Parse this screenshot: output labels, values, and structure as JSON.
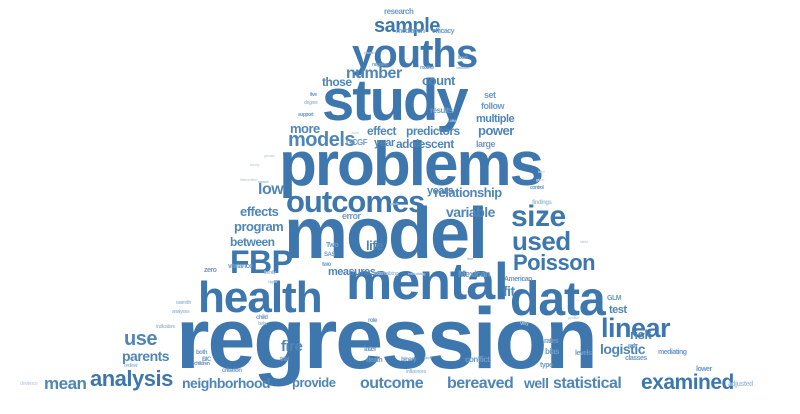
{
  "words": [
    {
      "id": "regression",
      "text": "regression"
    },
    {
      "id": "model",
      "text": "model"
    },
    {
      "id": "problems",
      "text": "problems"
    },
    {
      "id": "study",
      "text": "study"
    },
    {
      "id": "mental",
      "text": "mental"
    },
    {
      "id": "health",
      "text": "health"
    },
    {
      "id": "data",
      "text": "data"
    },
    {
      "id": "youths",
      "text": "youths"
    },
    {
      "id": "outcomes",
      "text": "outcomes"
    },
    {
      "id": "FBP",
      "text": "FBP"
    },
    {
      "id": "size",
      "text": "size"
    },
    {
      "id": "used",
      "text": "used"
    },
    {
      "id": "linear",
      "text": "linear"
    },
    {
      "id": "Poisson",
      "text": "Poisson"
    },
    {
      "id": "analysis",
      "text": "analysis"
    },
    {
      "id": "examined",
      "text": "examined"
    },
    {
      "id": "sample",
      "text": "sample"
    },
    {
      "id": "models",
      "text": "models"
    },
    {
      "id": "use",
      "text": "use"
    },
    {
      "id": "mean",
      "text": "mean"
    },
    {
      "id": "outcome",
      "text": "outcome"
    },
    {
      "id": "bereaved",
      "text": "bereaved"
    },
    {
      "id": "statistical",
      "text": "statistical"
    },
    {
      "id": "neighborhood",
      "text": "neighborhood"
    },
    {
      "id": "logistic",
      "text": "logistic"
    },
    {
      "id": "number",
      "text": "number"
    },
    {
      "id": "count",
      "text": "count"
    },
    {
      "id": "relationship",
      "text": "relationship"
    },
    {
      "id": "parents",
      "text": "parents"
    },
    {
      "id": "variable",
      "text": "variable"
    },
    {
      "id": "low",
      "text": "low"
    },
    {
      "id": "effects",
      "text": "effects"
    },
    {
      "id": "program",
      "text": "program"
    },
    {
      "id": "between",
      "text": "between"
    },
    {
      "id": "provide",
      "text": "provide"
    },
    {
      "id": "well",
      "text": "well"
    },
    {
      "id": "risk",
      "text": "risk"
    },
    {
      "id": "fit",
      "text": "fit"
    },
    {
      "id": "test",
      "text": "test"
    },
    {
      "id": "power",
      "text": "power"
    },
    {
      "id": "adolescent",
      "text": "adolescent"
    },
    {
      "id": "predictors",
      "text": "predictors"
    },
    {
      "id": "more",
      "text": "more"
    },
    {
      "id": "those",
      "text": "those"
    },
    {
      "id": "years",
      "text": "years"
    },
    {
      "id": "effect",
      "text": "effect"
    },
    {
      "id": "measures",
      "text": "measures"
    },
    {
      "id": "multiple",
      "text": "multiple"
    },
    {
      "id": "year",
      "text": "year"
    },
    {
      "id": "fire",
      "text": "fire"
    },
    {
      "id": "life",
      "text": "life"
    },
    {
      "id": "error",
      "text": "error"
    },
    {
      "id": "research",
      "text": "research"
    },
    {
      "id": "mediation",
      "text": "mediation"
    },
    {
      "id": "efficacy",
      "text": "efficacy"
    },
    {
      "id": "GCGF",
      "text": "GCGF"
    },
    {
      "id": "large",
      "text": "large"
    },
    {
      "id": "set",
      "text": "set"
    },
    {
      "id": "follow",
      "text": "follow"
    },
    {
      "id": "results",
      "text": "results"
    },
    {
      "id": "findings",
      "text": "findings"
    },
    {
      "id": "Mexican",
      "text": "Mexican"
    },
    {
      "id": "American",
      "text": "American"
    },
    {
      "id": "rates",
      "text": "rates"
    },
    {
      "id": "GLM",
      "text": "GLM"
    },
    {
      "id": "bias",
      "text": "bias"
    },
    {
      "id": "classes",
      "text": "classes"
    },
    {
      "id": "levels",
      "text": "levels"
    },
    {
      "id": "mediating",
      "text": "mediating"
    },
    {
      "id": "type",
      "text": "type"
    },
    {
      "id": "variance",
      "text": "variance"
    },
    {
      "id": "zero",
      "text": "zero"
    },
    {
      "id": "child",
      "text": "child"
    },
    {
      "id": "role",
      "text": "role"
    },
    {
      "id": "later",
      "text": "later"
    },
    {
      "id": "death",
      "text": "death"
    },
    {
      "id": "conflict",
      "text": "conflict"
    },
    {
      "id": "binary",
      "text": "binary"
    },
    {
      "id": "trial",
      "text": "trial"
    },
    {
      "id": "both",
      "text": "both"
    },
    {
      "id": "criterion",
      "text": "criterion"
    },
    {
      "id": "BIC",
      "text": "BIC"
    },
    {
      "id": "externalizing",
      "text": "externalizing"
    },
    {
      "id": "influences",
      "text": "influences"
    },
    {
      "id": "lower",
      "text": "lower"
    },
    {
      "id": "adjusted",
      "text": "adjusted"
    },
    {
      "id": "children",
      "text": "children"
    },
    {
      "id": "ordinal",
      "text": "ordinal"
    },
    {
      "id": "analyses",
      "text": "analyses"
    },
    {
      "id": "warmth",
      "text": "warmth"
    },
    {
      "id": "indicators",
      "text": "indicators"
    },
    {
      "id": "negative",
      "text": "negative"
    },
    {
      "id": "mother",
      "text": "mother"
    },
    {
      "id": "variables",
      "text": "variables"
    },
    {
      "id": "growth",
      "text": "growth"
    },
    {
      "id": "fixed",
      "text": "fixed"
    },
    {
      "id": "five",
      "text": "five"
    },
    {
      "id": "degree",
      "text": "degree"
    },
    {
      "id": "support",
      "text": "support"
    },
    {
      "id": "two",
      "text": "two"
    },
    {
      "id": "Two",
      "text": "Two"
    },
    {
      "id": "SAS",
      "text": "SAS"
    },
    {
      "id": "family",
      "text": "family"
    },
    {
      "id": "higher",
      "text": "higher"
    },
    {
      "id": "control",
      "text": "control"
    },
    {
      "id": "early",
      "text": "early"
    },
    {
      "id": "sizes",
      "text": "sizes"
    },
    {
      "id": "very",
      "text": "very"
    },
    {
      "id": "beta",
      "text": "beta"
    },
    {
      "id": "internalizing",
      "text": "internalizing"
    },
    {
      "id": "grade",
      "text": "grade"
    },
    {
      "id": "correct",
      "text": "correct"
    },
    {
      "id": "LMM",
      "text": "LMM"
    },
    {
      "id": "four",
      "text": "four"
    },
    {
      "id": "given",
      "text": "given"
    },
    {
      "id": "brief",
      "text": "brief"
    },
    {
      "id": "intervention",
      "text": "intervention"
    },
    {
      "id": "positive",
      "text": "positive"
    },
    {
      "id": "deviance",
      "text": "deviance"
    },
    {
      "id": "best",
      "text": "best"
    },
    {
      "id": "theory",
      "text": "theory"
    },
    {
      "id": "gender",
      "text": "gender"
    },
    {
      "id": "latent",
      "text": "latent"
    }
  ]
}
